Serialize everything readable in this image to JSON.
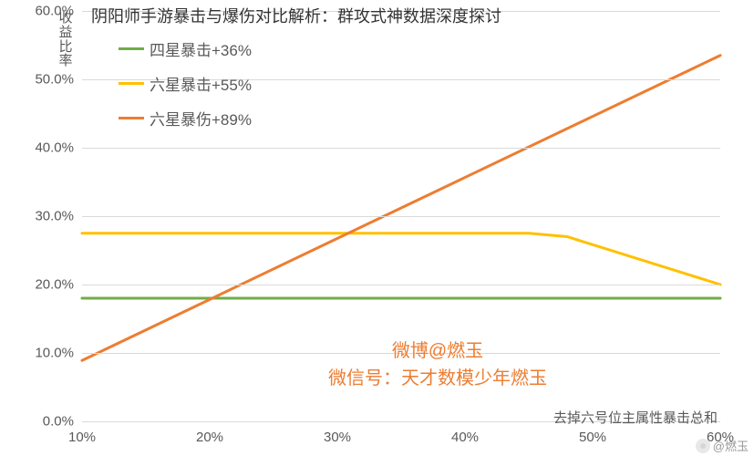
{
  "page_title": "阴阳师手游暴击与爆伤对比解析：群攻式神数据深度探讨",
  "chart": {
    "type": "line",
    "background_color": "#ffffff",
    "grid_color": "#d9d9d9",
    "font_color": "#595959",
    "tick_fontsize": 15,
    "title_fontsize": 18,
    "line_width": 3,
    "y_axis": {
      "title": "收益比率",
      "min": 0.0,
      "max": 60.0,
      "tick_step": 10.0,
      "format_suffix": "%",
      "format_decimals": 1
    },
    "x_axis": {
      "title": "去掉六号位主属性暴击总和",
      "min": 10,
      "max": 60,
      "tick_step": 10,
      "format_suffix": "%",
      "format_decimals": 0
    },
    "series": [
      {
        "name": "四星暴击+36%",
        "color": "#70ad47",
        "x": [
          10,
          60
        ],
        "y": [
          18.0,
          18.0
        ]
      },
      {
        "name": "六星暴击+55%",
        "color": "#ffc000",
        "x": [
          10,
          45,
          48,
          60
        ],
        "y": [
          27.5,
          27.5,
          27.0,
          20.0
        ]
      },
      {
        "name": "六星暴伤+89%",
        "color": "#ed7d31",
        "x": [
          10,
          60
        ],
        "y": [
          8.9,
          53.5
        ]
      }
    ],
    "legend": {
      "position": "upper-left",
      "fontsize": 17
    }
  },
  "credit": {
    "line1": "微博@燃玉",
    "line2": "微信号：天才数模少年燃玉",
    "color": "#ed7d31",
    "fontsize": 20
  },
  "watermark": {
    "text": "@燃玉",
    "color": "#888888"
  }
}
